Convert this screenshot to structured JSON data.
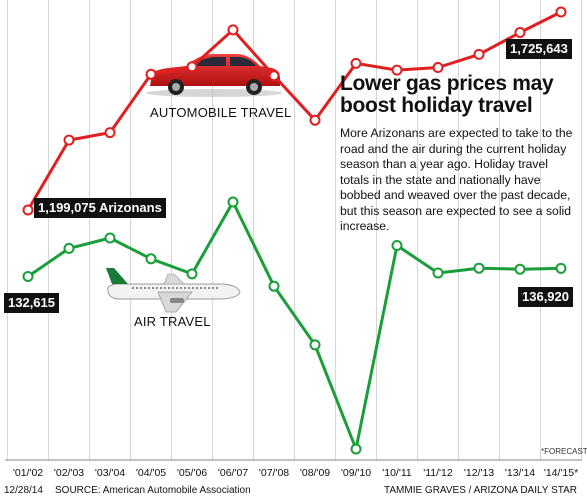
{
  "chart_data": {
    "type": "line",
    "title": "Lower gas prices may boost holiday travel",
    "description": "More Arizonans are expected to take to the road and the air during the current holiday season than a year ago. Holiday travel totals in the state and nationally have bobbed and weaved over the past decade, but this season are expected to see a solid increase.",
    "categories": [
      "'01/'02",
      "'02/'03",
      "'03/'04",
      "'04/'05",
      "'05/'06",
      "'06/'07",
      "'07/'08",
      "'08/'09",
      "'09/'10",
      "'10/'11",
      "'11/'12",
      "'12/'13",
      "'13/'14",
      "'14/'15*"
    ],
    "series": [
      {
        "name": "AUTOMOBILE TRAVEL",
        "color": "#e02020",
        "values": [
          1199075,
          1385000,
          1405000,
          1560000,
          1580000,
          1678000,
          1556000,
          1438000,
          1589000,
          1571000,
          1578000,
          1613000,
          1671000,
          1725643
        ],
        "labels": [
          {
            "index": 0,
            "text": "1,199,075 Arizonans"
          },
          {
            "index": 13,
            "text": "1,725,643"
          }
        ]
      },
      {
        "name": "AIR TRAVEL",
        "color": "#1a9e3a",
        "values": [
          132615,
          147500,
          153000,
          142000,
          134000,
          172000,
          127500,
          96500,
          41500,
          149000,
          134500,
          137000,
          136500,
          136920
        ],
        "labels": [
          {
            "index": 0,
            "text": "132,615"
          },
          {
            "index": 13,
            "text": "136,920"
          }
        ]
      }
    ],
    "forecast_note": "*FORECAST",
    "grid": "vertical"
  },
  "footer": {
    "date": "12/28/14",
    "source": "SOURCE: American Automobile Association",
    "credit": "TAMMIE GRAVES / ARIZONA DAILY STAR"
  },
  "icons": {
    "car": "red-sedan-icon",
    "plane": "airliner-icon"
  }
}
